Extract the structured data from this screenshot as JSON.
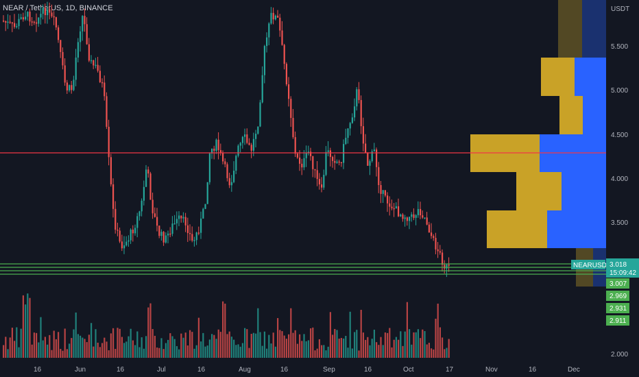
{
  "symbol_title": "NEAR / TetherUS, 1D, BINANCE",
  "currency": "USDT",
  "price_axis": {
    "ticks": [
      "5.500",
      "5.000",
      "4.500",
      "4.000",
      "3.500",
      "2.000"
    ]
  },
  "time_axis": {
    "ticks": [
      "16",
      "Jun",
      "16",
      "Jul",
      "16",
      "Aug",
      "16",
      "Sep",
      "16",
      "Oct",
      "17",
      "Nov",
      "16",
      "Dec"
    ]
  },
  "symbol_tag": "NEARUSDT",
  "last_price": "3.018",
  "countdown": "15:09:42",
  "level_labels": [
    "3.007",
    "2.969",
    "2.931",
    "2.911"
  ],
  "colors": {
    "background": "#131722",
    "up": "#26a69a",
    "down": "#ef5350",
    "resistance_line": "#f23645",
    "support_line": "#4caf50",
    "volume_profile_buy": "#c9a227",
    "volume_profile_sell": "#2962ff",
    "price_badge": "#26a69a",
    "level_badge": "#4caf50"
  }
}
